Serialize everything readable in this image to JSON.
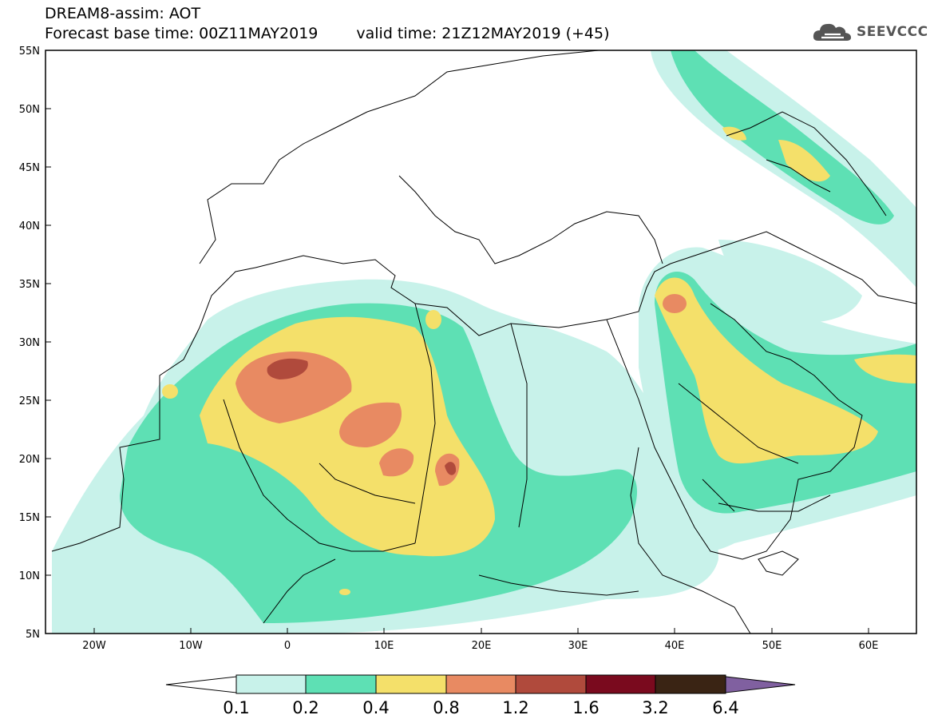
{
  "header": {
    "line1": "DREAM8-assim: AOT",
    "base_time": "Forecast base time: 00Z11MAY2019",
    "valid_time": "valid time: 21Z12MAY2019 (+45)"
  },
  "brand": {
    "logo_text": "SEEVCCC",
    "icon": "cloud-icon"
  },
  "map": {
    "lat_ticks": [
      "55N",
      "50N",
      "45N",
      "40N",
      "35N",
      "30N",
      "25N",
      "20N",
      "15N",
      "10N",
      "5N"
    ],
    "lon_ticks": [
      "20W",
      "10W",
      "0",
      "10E",
      "20E",
      "30E",
      "40E",
      "50E",
      "60E"
    ],
    "extent": {
      "lon": [
        -25,
        65
      ],
      "lat": [
        5,
        55
      ]
    }
  },
  "legend": {
    "labels": [
      "0.1",
      "0.2",
      "0.4",
      "0.8",
      "1.2",
      "1.6",
      "3.2",
      "6.4"
    ],
    "colors": [
      "#ffffff",
      "#c8f2ea",
      "#5ee0b4",
      "#f4e06a",
      "#e88a62",
      "#b04a3c",
      "#7a0a1e",
      "#3a2414",
      "#8060a0"
    ]
  }
}
